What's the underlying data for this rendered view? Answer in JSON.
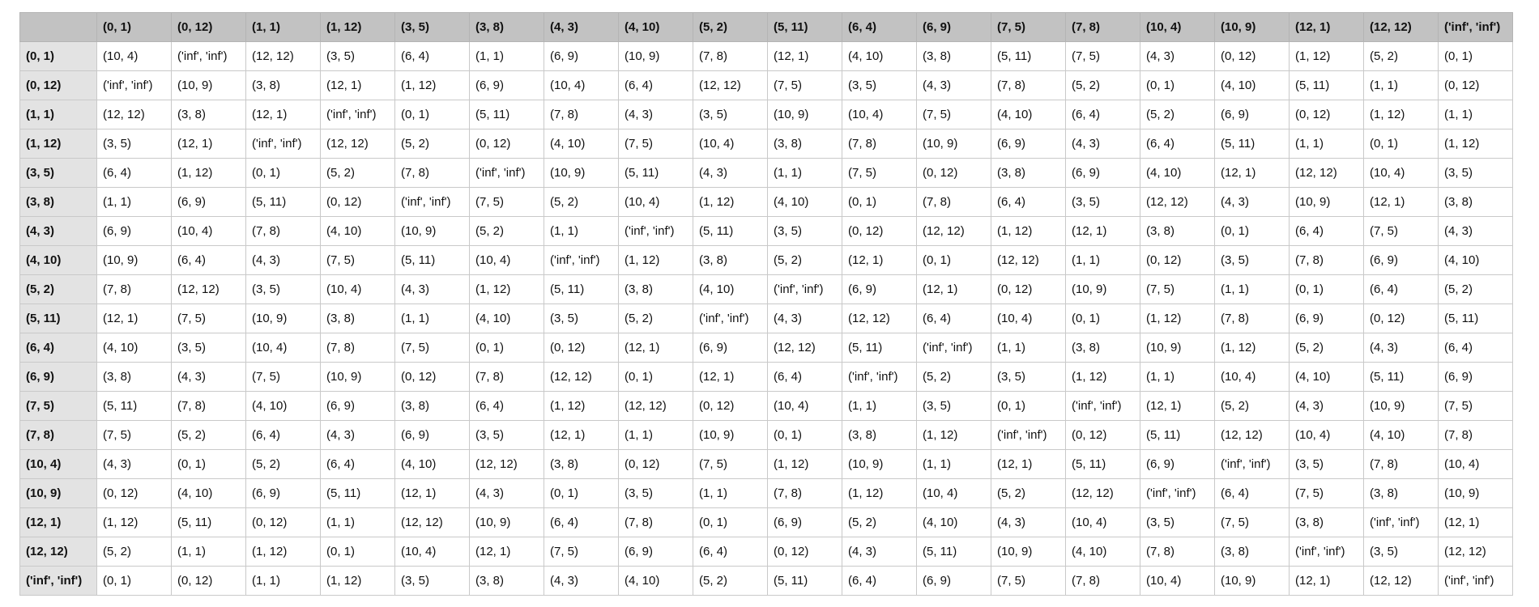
{
  "table": {
    "header": [
      "(0, 1)",
      "(0, 12)",
      "(1, 1)",
      "(1, 12)",
      "(3, 5)",
      "(3, 8)",
      "(4, 3)",
      "(4, 10)",
      "(5, 2)",
      "(5, 11)",
      "(6, 4)",
      "(6, 9)",
      "(7, 5)",
      "(7, 8)",
      "(10, 4)",
      "(10, 9)",
      "(12, 1)",
      "(12, 12)",
      "('inf', 'inf')"
    ],
    "rows": [
      [
        "(0, 1)",
        "(10, 4)",
        "('inf', 'inf')",
        "(12, 12)",
        "(3, 5)",
        "(6, 4)",
        "(1, 1)",
        "(6, 9)",
        "(10, 9)",
        "(7, 8)",
        "(12, 1)",
        "(4, 10)",
        "(3, 8)",
        "(5, 11)",
        "(7, 5)",
        "(4, 3)",
        "(0, 12)",
        "(1, 12)",
        "(5, 2)",
        "(0, 1)"
      ],
      [
        "(0, 12)",
        "('inf', 'inf')",
        "(10, 9)",
        "(3, 8)",
        "(12, 1)",
        "(1, 12)",
        "(6, 9)",
        "(10, 4)",
        "(6, 4)",
        "(12, 12)",
        "(7, 5)",
        "(3, 5)",
        "(4, 3)",
        "(7, 8)",
        "(5, 2)",
        "(0, 1)",
        "(4, 10)",
        "(5, 11)",
        "(1, 1)",
        "(0, 12)"
      ],
      [
        "(1, 1)",
        "(12, 12)",
        "(3, 8)",
        "(12, 1)",
        "('inf', 'inf')",
        "(0, 1)",
        "(5, 11)",
        "(7, 8)",
        "(4, 3)",
        "(3, 5)",
        "(10, 9)",
        "(10, 4)",
        "(7, 5)",
        "(4, 10)",
        "(6, 4)",
        "(5, 2)",
        "(6, 9)",
        "(0, 12)",
        "(1, 12)",
        "(1, 1)"
      ],
      [
        "(1, 12)",
        "(3, 5)",
        "(12, 1)",
        "('inf', 'inf')",
        "(12, 12)",
        "(5, 2)",
        "(0, 12)",
        "(4, 10)",
        "(7, 5)",
        "(10, 4)",
        "(3, 8)",
        "(7, 8)",
        "(10, 9)",
        "(6, 9)",
        "(4, 3)",
        "(6, 4)",
        "(5, 11)",
        "(1, 1)",
        "(0, 1)",
        "(1, 12)"
      ],
      [
        "(3, 5)",
        "(6, 4)",
        "(1, 12)",
        "(0, 1)",
        "(5, 2)",
        "(7, 8)",
        "('inf', 'inf')",
        "(10, 9)",
        "(5, 11)",
        "(4, 3)",
        "(1, 1)",
        "(7, 5)",
        "(0, 12)",
        "(3, 8)",
        "(6, 9)",
        "(4, 10)",
        "(12, 1)",
        "(12, 12)",
        "(10, 4)",
        "(3, 5)"
      ],
      [
        "(3, 8)",
        "(1, 1)",
        "(6, 9)",
        "(5, 11)",
        "(0, 12)",
        "('inf', 'inf')",
        "(7, 5)",
        "(5, 2)",
        "(10, 4)",
        "(1, 12)",
        "(4, 10)",
        "(0, 1)",
        "(7, 8)",
        "(6, 4)",
        "(3, 5)",
        "(12, 12)",
        "(4, 3)",
        "(10, 9)",
        "(12, 1)",
        "(3, 8)"
      ],
      [
        "(4, 3)",
        "(6, 9)",
        "(10, 4)",
        "(7, 8)",
        "(4, 10)",
        "(10, 9)",
        "(5, 2)",
        "(1, 1)",
        "('inf', 'inf')",
        "(5, 11)",
        "(3, 5)",
        "(0, 12)",
        "(12, 12)",
        "(1, 12)",
        "(12, 1)",
        "(3, 8)",
        "(0, 1)",
        "(6, 4)",
        "(7, 5)",
        "(4, 3)"
      ],
      [
        "(4, 10)",
        "(10, 9)",
        "(6, 4)",
        "(4, 3)",
        "(7, 5)",
        "(5, 11)",
        "(10, 4)",
        "('inf', 'inf')",
        "(1, 12)",
        "(3, 8)",
        "(5, 2)",
        "(12, 1)",
        "(0, 1)",
        "(12, 12)",
        "(1, 1)",
        "(0, 12)",
        "(3, 5)",
        "(7, 8)",
        "(6, 9)",
        "(4, 10)"
      ],
      [
        "(5, 2)",
        "(7, 8)",
        "(12, 12)",
        "(3, 5)",
        "(10, 4)",
        "(4, 3)",
        "(1, 12)",
        "(5, 11)",
        "(3, 8)",
        "(4, 10)",
        "('inf', 'inf')",
        "(6, 9)",
        "(12, 1)",
        "(0, 12)",
        "(10, 9)",
        "(7, 5)",
        "(1, 1)",
        "(0, 1)",
        "(6, 4)",
        "(5, 2)"
      ],
      [
        "(5, 11)",
        "(12, 1)",
        "(7, 5)",
        "(10, 9)",
        "(3, 8)",
        "(1, 1)",
        "(4, 10)",
        "(3, 5)",
        "(5, 2)",
        "('inf', 'inf')",
        "(4, 3)",
        "(12, 12)",
        "(6, 4)",
        "(10, 4)",
        "(0, 1)",
        "(1, 12)",
        "(7, 8)",
        "(6, 9)",
        "(0, 12)",
        "(5, 11)"
      ],
      [
        "(6, 4)",
        "(4, 10)",
        "(3, 5)",
        "(10, 4)",
        "(7, 8)",
        "(7, 5)",
        "(0, 1)",
        "(0, 12)",
        "(12, 1)",
        "(6, 9)",
        "(12, 12)",
        "(5, 11)",
        "('inf', 'inf')",
        "(1, 1)",
        "(3, 8)",
        "(10, 9)",
        "(1, 12)",
        "(5, 2)",
        "(4, 3)",
        "(6, 4)"
      ],
      [
        "(6, 9)",
        "(3, 8)",
        "(4, 3)",
        "(7, 5)",
        "(10, 9)",
        "(0, 12)",
        "(7, 8)",
        "(12, 12)",
        "(0, 1)",
        "(12, 1)",
        "(6, 4)",
        "('inf', 'inf')",
        "(5, 2)",
        "(3, 5)",
        "(1, 12)",
        "(1, 1)",
        "(10, 4)",
        "(4, 10)",
        "(5, 11)",
        "(6, 9)"
      ],
      [
        "(7, 5)",
        "(5, 11)",
        "(7, 8)",
        "(4, 10)",
        "(6, 9)",
        "(3, 8)",
        "(6, 4)",
        "(1, 12)",
        "(12, 12)",
        "(0, 12)",
        "(10, 4)",
        "(1, 1)",
        "(3, 5)",
        "(0, 1)",
        "('inf', 'inf')",
        "(12, 1)",
        "(5, 2)",
        "(4, 3)",
        "(10, 9)",
        "(7, 5)"
      ],
      [
        "(7, 8)",
        "(7, 5)",
        "(5, 2)",
        "(6, 4)",
        "(4, 3)",
        "(6, 9)",
        "(3, 5)",
        "(12, 1)",
        "(1, 1)",
        "(10, 9)",
        "(0, 1)",
        "(3, 8)",
        "(1, 12)",
        "('inf', 'inf')",
        "(0, 12)",
        "(5, 11)",
        "(12, 12)",
        "(10, 4)",
        "(4, 10)",
        "(7, 8)"
      ],
      [
        "(10, 4)",
        "(4, 3)",
        "(0, 1)",
        "(5, 2)",
        "(6, 4)",
        "(4, 10)",
        "(12, 12)",
        "(3, 8)",
        "(0, 12)",
        "(7, 5)",
        "(1, 12)",
        "(10, 9)",
        "(1, 1)",
        "(12, 1)",
        "(5, 11)",
        "(6, 9)",
        "('inf', 'inf')",
        "(3, 5)",
        "(7, 8)",
        "(10, 4)"
      ],
      [
        "(10, 9)",
        "(0, 12)",
        "(4, 10)",
        "(6, 9)",
        "(5, 11)",
        "(12, 1)",
        "(4, 3)",
        "(0, 1)",
        "(3, 5)",
        "(1, 1)",
        "(7, 8)",
        "(1, 12)",
        "(10, 4)",
        "(5, 2)",
        "(12, 12)",
        "('inf', 'inf')",
        "(6, 4)",
        "(7, 5)",
        "(3, 8)",
        "(10, 9)"
      ],
      [
        "(12, 1)",
        "(1, 12)",
        "(5, 11)",
        "(0, 12)",
        "(1, 1)",
        "(12, 12)",
        "(10, 9)",
        "(6, 4)",
        "(7, 8)",
        "(0, 1)",
        "(6, 9)",
        "(5, 2)",
        "(4, 10)",
        "(4, 3)",
        "(10, 4)",
        "(3, 5)",
        "(7, 5)",
        "(3, 8)",
        "('inf', 'inf')",
        "(12, 1)"
      ],
      [
        "(12, 12)",
        "(5, 2)",
        "(1, 1)",
        "(1, 12)",
        "(0, 1)",
        "(10, 4)",
        "(12, 1)",
        "(7, 5)",
        "(6, 9)",
        "(6, 4)",
        "(0, 12)",
        "(4, 3)",
        "(5, 11)",
        "(10, 9)",
        "(4, 10)",
        "(7, 8)",
        "(3, 8)",
        "('inf', 'inf')",
        "(3, 5)",
        "(12, 12)"
      ],
      [
        "('inf', 'inf')",
        "(0, 1)",
        "(0, 12)",
        "(1, 1)",
        "(1, 12)",
        "(3, 5)",
        "(3, 8)",
        "(4, 3)",
        "(4, 10)",
        "(5, 2)",
        "(5, 11)",
        "(6, 4)",
        "(6, 9)",
        "(7, 5)",
        "(7, 8)",
        "(10, 4)",
        "(10, 9)",
        "(12, 1)",
        "(12, 12)",
        "('inf', 'inf')"
      ]
    ]
  }
}
